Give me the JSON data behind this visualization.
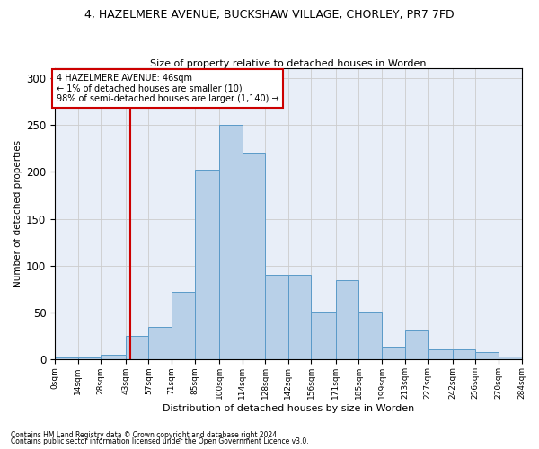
{
  "title1": "4, HAZELMERE AVENUE, BUCKSHAW VILLAGE, CHORLEY, PR7 7FD",
  "title2": "Size of property relative to detached houses in Worden",
  "xlabel": "Distribution of detached houses by size in Worden",
  "ylabel": "Number of detached properties",
  "footer1": "Contains HM Land Registry data © Crown copyright and database right 2024.",
  "footer2": "Contains public sector information licensed under the Open Government Licence v3.0.",
  "annotation_line1": "4 HAZELMERE AVENUE: 46sqm",
  "annotation_line2": "← 1% of detached houses are smaller (10)",
  "annotation_line3": "98% of semi-detached houses are larger (1,140) →",
  "property_size": 46,
  "bar_color": "#b8d0e8",
  "bar_edge_color": "#5a9ac8",
  "red_line_color": "#cc0000",
  "annotation_box_color": "#ffffff",
  "annotation_box_edge": "#cc0000",
  "grid_color": "#cccccc",
  "bg_color": "#e8eef8",
  "bin_edges": [
    0,
    14,
    28,
    43,
    57,
    71,
    85,
    100,
    114,
    128,
    142,
    156,
    171,
    185,
    199,
    213,
    227,
    242,
    256,
    270,
    284
  ],
  "bar_heights": [
    2,
    2,
    5,
    25,
    35,
    72,
    202,
    250,
    220,
    90,
    90,
    51,
    85,
    51,
    14,
    31,
    11,
    11,
    8,
    3
  ],
  "bin_labels": [
    "0sqm",
    "14sqm",
    "28sqm",
    "43sqm",
    "57sqm",
    "71sqm",
    "85sqm",
    "100sqm",
    "114sqm",
    "128sqm",
    "142sqm",
    "156sqm",
    "171sqm",
    "185sqm",
    "199sqm",
    "213sqm",
    "227sqm",
    "242sqm",
    "256sqm",
    "270sqm",
    "284sqm"
  ],
  "ylim": [
    0,
    310
  ],
  "yticks": [
    0,
    50,
    100,
    150,
    200,
    250,
    300
  ]
}
